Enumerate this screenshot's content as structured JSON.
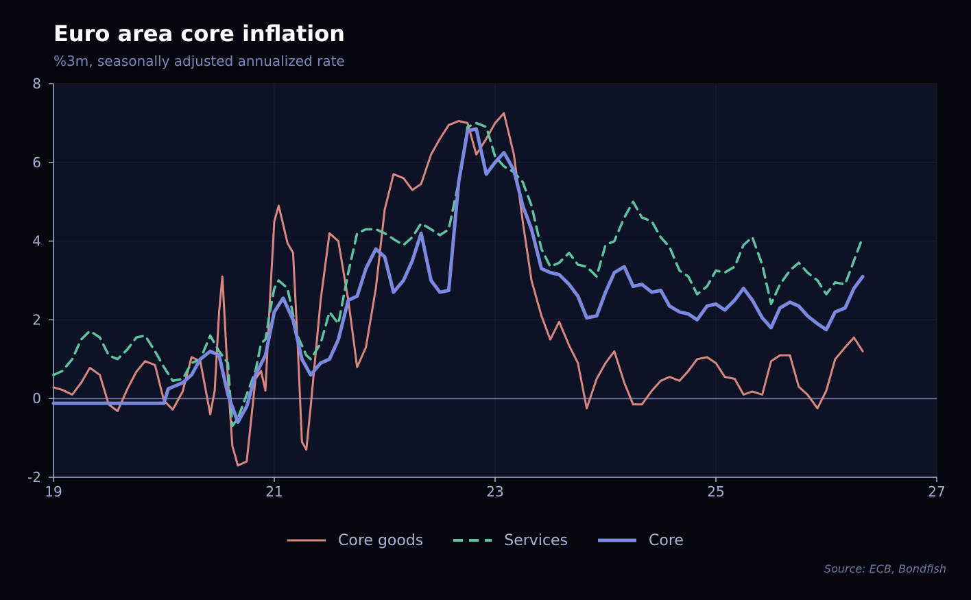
{
  "chart_data": {
    "type": "line",
    "title": "Euro area core inflation",
    "subtitle": "%3m, seasonally adjusted annualized rate",
    "xlabel": "",
    "ylabel": "",
    "xlim": [
      19,
      27
    ],
    "ylim": [
      -2,
      8
    ],
    "x_ticks": [
      19,
      21,
      23,
      25,
      27
    ],
    "y_ticks": [
      -2,
      0,
      2,
      4,
      6,
      8
    ],
    "reference_line": 0,
    "legend_position": "bottom-center",
    "source": "Source: ECB, Bondfish",
    "series": [
      {
        "name": "Core goods",
        "color": "#d98880",
        "style": "solid",
        "points": [
          [
            19.0,
            0.28
          ],
          [
            19.08,
            0.22
          ],
          [
            19.17,
            0.1
          ],
          [
            19.25,
            0.4
          ],
          [
            19.33,
            0.78
          ],
          [
            19.42,
            0.6
          ],
          [
            19.5,
            -0.15
          ],
          [
            19.58,
            -0.32
          ],
          [
            19.67,
            0.25
          ],
          [
            19.75,
            0.68
          ],
          [
            19.83,
            0.95
          ],
          [
            19.92,
            0.85
          ],
          [
            20.0,
            -0.05
          ],
          [
            20.08,
            -0.28
          ],
          [
            20.17,
            0.18
          ],
          [
            20.25,
            1.05
          ],
          [
            20.33,
            0.95
          ],
          [
            20.42,
            -0.4
          ],
          [
            20.46,
            0.2
          ],
          [
            20.5,
            2.2
          ],
          [
            20.53,
            3.1
          ],
          [
            20.58,
            0.5
          ],
          [
            20.62,
            -1.2
          ],
          [
            20.67,
            -1.7
          ],
          [
            20.75,
            -1.6
          ],
          [
            20.83,
            0.5
          ],
          [
            20.88,
            0.7
          ],
          [
            20.92,
            0.2
          ],
          [
            20.96,
            2.5
          ],
          [
            21.0,
            4.5
          ],
          [
            21.04,
            4.9
          ],
          [
            21.12,
            3.95
          ],
          [
            21.17,
            3.7
          ],
          [
            21.21,
            1.5
          ],
          [
            21.25,
            -1.1
          ],
          [
            21.29,
            -1.3
          ],
          [
            21.33,
            -0.2
          ],
          [
            21.42,
            2.5
          ],
          [
            21.5,
            4.2
          ],
          [
            21.58,
            4.0
          ],
          [
            21.67,
            2.5
          ],
          [
            21.75,
            0.8
          ],
          [
            21.83,
            1.3
          ],
          [
            21.92,
            2.8
          ],
          [
            22.0,
            4.8
          ],
          [
            22.08,
            5.7
          ],
          [
            22.17,
            5.6
          ],
          [
            22.25,
            5.3
          ],
          [
            22.33,
            5.45
          ],
          [
            22.42,
            6.2
          ],
          [
            22.5,
            6.6
          ],
          [
            22.58,
            6.95
          ],
          [
            22.67,
            7.05
          ],
          [
            22.75,
            7.0
          ],
          [
            22.83,
            6.2
          ],
          [
            22.92,
            6.6
          ],
          [
            23.0,
            7.0
          ],
          [
            23.08,
            7.25
          ],
          [
            23.17,
            6.2
          ],
          [
            23.25,
            4.5
          ],
          [
            23.33,
            3.0
          ],
          [
            23.42,
            2.1
          ],
          [
            23.5,
            1.5
          ],
          [
            23.58,
            1.95
          ],
          [
            23.67,
            1.35
          ],
          [
            23.75,
            0.9
          ],
          [
            23.83,
            -0.25
          ],
          [
            23.92,
            0.5
          ],
          [
            24.0,
            0.9
          ],
          [
            24.08,
            1.2
          ],
          [
            24.17,
            0.4
          ],
          [
            24.25,
            -0.15
          ],
          [
            24.33,
            -0.15
          ],
          [
            24.42,
            0.2
          ],
          [
            24.5,
            0.45
          ],
          [
            24.58,
            0.55
          ],
          [
            24.67,
            0.45
          ],
          [
            24.75,
            0.7
          ],
          [
            24.83,
            1.0
          ],
          [
            24.92,
            1.05
          ],
          [
            25.0,
            0.9
          ],
          [
            25.08,
            0.55
          ],
          [
            25.17,
            0.5
          ],
          [
            25.25,
            0.1
          ],
          [
            25.33,
            0.18
          ],
          [
            25.42,
            0.1
          ],
          [
            25.5,
            0.95
          ],
          [
            25.58,
            1.1
          ],
          [
            25.67,
            1.1
          ],
          [
            25.75,
            0.3
          ],
          [
            25.83,
            0.1
          ],
          [
            25.92,
            -0.25
          ],
          [
            26.0,
            0.2
          ],
          [
            26.08,
            1.0
          ],
          [
            26.17,
            1.3
          ],
          [
            26.25,
            1.55
          ],
          [
            26.33,
            1.2
          ]
        ]
      },
      {
        "name": "Services",
        "color": "#5ec4a1",
        "style": "dashed",
        "points": [
          [
            19.0,
            0.6
          ],
          [
            19.08,
            0.7
          ],
          [
            19.17,
            1.0
          ],
          [
            19.25,
            1.5
          ],
          [
            19.33,
            1.72
          ],
          [
            19.42,
            1.55
          ],
          [
            19.5,
            1.1
          ],
          [
            19.58,
            1.0
          ],
          [
            19.67,
            1.25
          ],
          [
            19.75,
            1.55
          ],
          [
            19.83,
            1.6
          ],
          [
            19.92,
            1.2
          ],
          [
            20.0,
            0.8
          ],
          [
            20.08,
            0.45
          ],
          [
            20.17,
            0.5
          ],
          [
            20.25,
            0.9
          ],
          [
            20.33,
            1.0
          ],
          [
            20.42,
            1.6
          ],
          [
            20.5,
            1.2
          ],
          [
            20.58,
            0.9
          ],
          [
            20.62,
            -0.7
          ],
          [
            20.67,
            -0.5
          ],
          [
            20.75,
            0.1
          ],
          [
            20.83,
            0.7
          ],
          [
            20.88,
            1.4
          ],
          [
            20.92,
            1.5
          ],
          [
            20.96,
            2.2
          ],
          [
            21.0,
            2.8
          ],
          [
            21.04,
            3.0
          ],
          [
            21.12,
            2.8
          ],
          [
            21.21,
            1.6
          ],
          [
            21.29,
            1.1
          ],
          [
            21.33,
            1.0
          ],
          [
            21.42,
            1.4
          ],
          [
            21.5,
            2.2
          ],
          [
            21.58,
            1.9
          ],
          [
            21.67,
            3.2
          ],
          [
            21.75,
            4.2
          ],
          [
            21.83,
            4.3
          ],
          [
            21.92,
            4.3
          ],
          [
            22.0,
            4.2
          ],
          [
            22.08,
            4.05
          ],
          [
            22.17,
            3.9
          ],
          [
            22.25,
            4.1
          ],
          [
            22.33,
            4.45
          ],
          [
            22.42,
            4.3
          ],
          [
            22.5,
            4.15
          ],
          [
            22.58,
            4.3
          ],
          [
            22.67,
            5.5
          ],
          [
            22.75,
            6.9
          ],
          [
            22.83,
            7.0
          ],
          [
            22.92,
            6.9
          ],
          [
            23.0,
            6.15
          ],
          [
            23.08,
            5.9
          ],
          [
            23.17,
            5.75
          ],
          [
            23.25,
            5.5
          ],
          [
            23.33,
            4.9
          ],
          [
            23.42,
            3.8
          ],
          [
            23.5,
            3.35
          ],
          [
            23.58,
            3.45
          ],
          [
            23.67,
            3.7
          ],
          [
            23.75,
            3.4
          ],
          [
            23.83,
            3.35
          ],
          [
            23.92,
            3.1
          ],
          [
            24.0,
            3.9
          ],
          [
            24.08,
            4.0
          ],
          [
            24.17,
            4.6
          ],
          [
            24.25,
            5.0
          ],
          [
            24.33,
            4.6
          ],
          [
            24.42,
            4.5
          ],
          [
            24.5,
            4.1
          ],
          [
            24.58,
            3.85
          ],
          [
            24.67,
            3.25
          ],
          [
            24.75,
            3.1
          ],
          [
            24.83,
            2.65
          ],
          [
            24.92,
            2.85
          ],
          [
            25.0,
            3.25
          ],
          [
            25.08,
            3.2
          ],
          [
            25.17,
            3.35
          ],
          [
            25.25,
            3.9
          ],
          [
            25.33,
            4.1
          ],
          [
            25.42,
            3.4
          ],
          [
            25.5,
            2.4
          ],
          [
            25.58,
            2.9
          ],
          [
            25.67,
            3.25
          ],
          [
            25.75,
            3.45
          ],
          [
            25.83,
            3.2
          ],
          [
            25.92,
            3.0
          ],
          [
            26.0,
            2.65
          ],
          [
            26.08,
            2.95
          ],
          [
            26.17,
            2.9
          ],
          [
            26.25,
            3.5
          ],
          [
            26.33,
            4.1
          ]
        ]
      },
      {
        "name": "Core",
        "color": "#7b8ae0",
        "style": "solid-thick",
        "points": [
          [
            19.0,
            -0.12
          ],
          [
            19.5,
            -0.12
          ],
          [
            20.0,
            -0.12
          ],
          [
            20.04,
            0.25
          ],
          [
            20.17,
            0.4
          ],
          [
            20.25,
            0.6
          ],
          [
            20.33,
            1.0
          ],
          [
            20.42,
            1.2
          ],
          [
            20.5,
            1.1
          ],
          [
            20.58,
            0.1
          ],
          [
            20.67,
            -0.6
          ],
          [
            20.75,
            -0.2
          ],
          [
            20.83,
            0.6
          ],
          [
            20.92,
            1.1
          ],
          [
            21.0,
            2.2
          ],
          [
            21.08,
            2.55
          ],
          [
            21.17,
            2.0
          ],
          [
            21.25,
            1.0
          ],
          [
            21.33,
            0.6
          ],
          [
            21.42,
            0.9
          ],
          [
            21.5,
            1.0
          ],
          [
            21.58,
            1.5
          ],
          [
            21.67,
            2.5
          ],
          [
            21.75,
            2.6
          ],
          [
            21.83,
            3.3
          ],
          [
            21.92,
            3.8
          ],
          [
            22.0,
            3.6
          ],
          [
            22.08,
            2.7
          ],
          [
            22.17,
            3.0
          ],
          [
            22.25,
            3.5
          ],
          [
            22.33,
            4.2
          ],
          [
            22.42,
            3.0
          ],
          [
            22.5,
            2.7
          ],
          [
            22.58,
            2.75
          ],
          [
            22.67,
            5.5
          ],
          [
            22.75,
            6.8
          ],
          [
            22.83,
            6.85
          ],
          [
            22.92,
            5.7
          ],
          [
            23.0,
            6.0
          ],
          [
            23.08,
            6.25
          ],
          [
            23.17,
            5.8
          ],
          [
            23.25,
            4.9
          ],
          [
            23.33,
            4.3
          ],
          [
            23.42,
            3.3
          ],
          [
            23.5,
            3.2
          ],
          [
            23.58,
            3.15
          ],
          [
            23.67,
            2.9
          ],
          [
            23.75,
            2.6
          ],
          [
            23.83,
            2.05
          ],
          [
            23.92,
            2.1
          ],
          [
            24.0,
            2.7
          ],
          [
            24.08,
            3.2
          ],
          [
            24.17,
            3.35
          ],
          [
            24.25,
            2.85
          ],
          [
            24.33,
            2.9
          ],
          [
            24.42,
            2.7
          ],
          [
            24.5,
            2.75
          ],
          [
            24.58,
            2.35
          ],
          [
            24.67,
            2.2
          ],
          [
            24.75,
            2.15
          ],
          [
            24.83,
            2.0
          ],
          [
            24.92,
            2.35
          ],
          [
            25.0,
            2.4
          ],
          [
            25.08,
            2.25
          ],
          [
            25.17,
            2.5
          ],
          [
            25.25,
            2.8
          ],
          [
            25.33,
            2.5
          ],
          [
            25.42,
            2.05
          ],
          [
            25.5,
            1.8
          ],
          [
            25.58,
            2.3
          ],
          [
            25.67,
            2.45
          ],
          [
            25.75,
            2.35
          ],
          [
            25.83,
            2.1
          ],
          [
            25.92,
            1.9
          ],
          [
            26.0,
            1.75
          ],
          [
            26.08,
            2.2
          ],
          [
            26.17,
            2.3
          ],
          [
            26.25,
            2.8
          ],
          [
            26.33,
            3.1
          ]
        ]
      }
    ]
  },
  "legend": {
    "items": [
      {
        "label": "Core goods",
        "color": "#d98880",
        "style": "solid"
      },
      {
        "label": "Services",
        "color": "#5ec4a1",
        "style": "dashed"
      },
      {
        "label": "Core",
        "color": "#7b8ae0",
        "style": "solid-thick"
      }
    ]
  },
  "colors": {
    "background": "#05070f",
    "plot_background": "#0d1224",
    "grid": "#1a2036",
    "zero_line": "#6a6f9e",
    "tick_text": "#aab0d4"
  }
}
